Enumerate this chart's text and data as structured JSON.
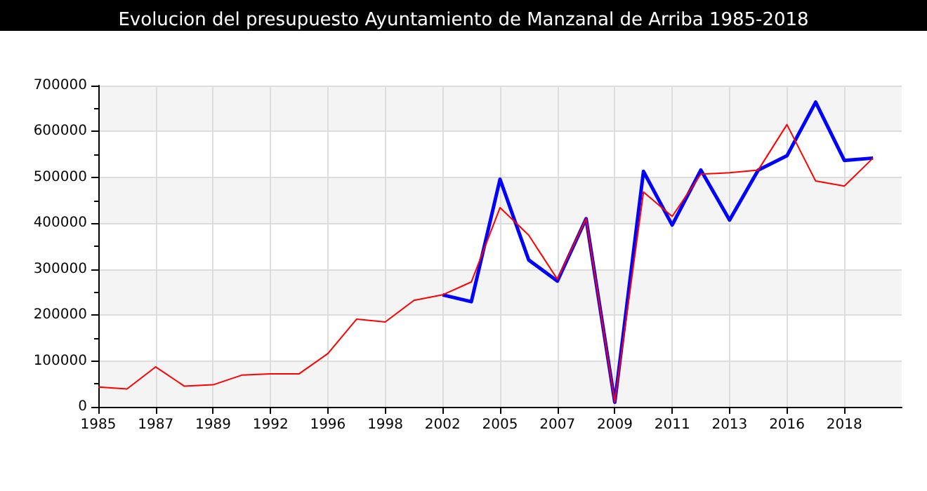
{
  "chart_data": {
    "type": "line",
    "title": "Evolucion del presupuesto Ayuntamiento de Manzanal de Arriba 1985-2018",
    "categories": [
      "1985",
      null,
      "1987",
      null,
      "1989",
      null,
      "1992",
      null,
      "1996",
      null,
      "1998",
      null,
      "2002",
      null,
      "2005",
      null,
      "2007",
      null,
      "2009",
      null,
      "2011",
      null,
      "2013",
      null,
      "2016",
      null,
      "2018",
      null,
      null
    ],
    "series": [
      {
        "color": "#0000ff",
        "values": [
          null,
          null,
          null,
          null,
          null,
          null,
          null,
          null,
          null,
          null,
          null,
          null,
          244000,
          229000,
          496000,
          320000,
          274000,
          410000,
          10000,
          513000,
          396000,
          516000,
          407000,
          516000,
          547000,
          664000,
          537000,
          542000,
          null
        ]
      },
      {
        "color": "#ff0000",
        "values": [
          43000,
          39000,
          87000,
          45000,
          48000,
          69000,
          72000,
          72000,
          116000,
          191000,
          185000,
          232000,
          244000,
          272000,
          434000,
          374000,
          278000,
          410000,
          10000,
          468000,
          415000,
          507000,
          510000,
          516000,
          615000,
          492000,
          481000,
          542000,
          null
        ]
      }
    ],
    "ylim": [
      0,
      700000
    ],
    "yticks": [
      0,
      100000,
      200000,
      300000,
      400000,
      500000,
      600000,
      700000
    ],
    "grid": true,
    "marker": "none",
    "line_style": "solid"
  }
}
